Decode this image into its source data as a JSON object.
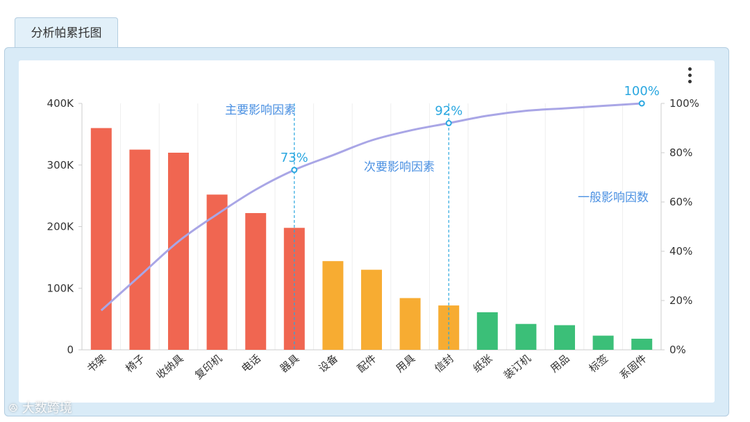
{
  "tab": {
    "label": "分析帕累托图"
  },
  "watermark": {
    "text": "大数跨境"
  },
  "colors": {
    "major": "#f06651",
    "secondary": "#f7ac32",
    "general": "#3bbf78",
    "cumulative_line": "#a9a6e6",
    "marker": "#2aa7e0",
    "zone_label": "#4a90e2"
  },
  "chart_data": {
    "type": "bar",
    "categories": [
      "书架",
      "椅子",
      "收纳具",
      "复印机",
      "电话",
      "器具",
      "设备",
      "配件",
      "用具",
      "信封",
      "纸张",
      "装订机",
      "用品",
      "标签",
      "系固件"
    ],
    "values": [
      360000,
      325000,
      320000,
      252000,
      222000,
      198000,
      144000,
      130000,
      84000,
      72000,
      61000,
      42000,
      40000,
      23000,
      18000
    ],
    "groups": [
      "major",
      "major",
      "major",
      "major",
      "major",
      "major",
      "secondary",
      "secondary",
      "secondary",
      "secondary",
      "general",
      "general",
      "general",
      "general",
      "general"
    ],
    "cumulative_percent": [
      16,
      30,
      44,
      55,
      65,
      73,
      79,
      85,
      89,
      92,
      95,
      97,
      98,
      99,
      100
    ],
    "y_left": {
      "ticks": [
        "0",
        "100K",
        "200K",
        "300K",
        "400K"
      ],
      "range": [
        0,
        400000
      ]
    },
    "y_right": {
      "ticks": [
        "0%",
        "20%",
        "40%",
        "60%",
        "80%",
        "100%"
      ],
      "range": [
        0,
        100
      ]
    },
    "zones": {
      "major_label": "主要影响因素",
      "secondary_label": "次要影响因素",
      "general_label": "一般影响因数"
    },
    "thresholds": [
      {
        "after_index": 5,
        "label": "73%"
      },
      {
        "after_index": 9,
        "label": "92%"
      },
      {
        "after_index": 14,
        "label": "100%"
      }
    ],
    "grid": "vertical"
  }
}
